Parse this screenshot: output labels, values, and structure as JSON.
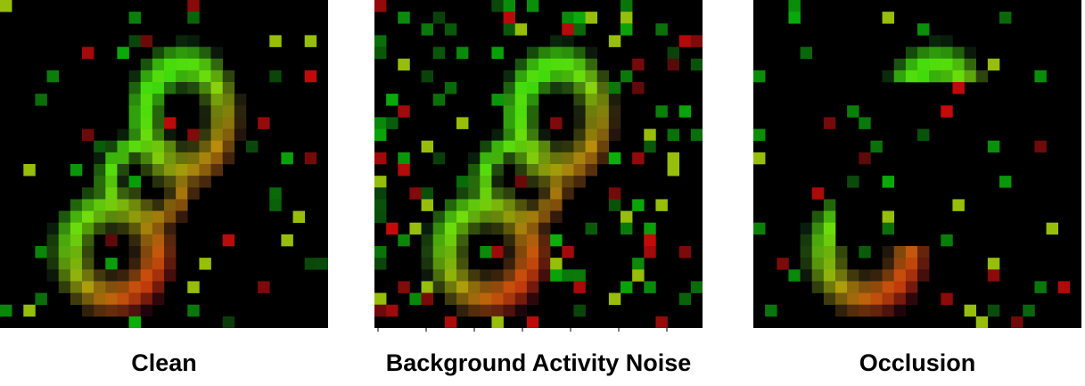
{
  "panels": [
    {
      "id": "clean",
      "caption": "Clean"
    },
    {
      "id": "noise",
      "caption": "Background Activity Noise"
    },
    {
      "id": "occlusion",
      "caption": "Occlusion"
    }
  ],
  "colors": {
    "background": "#000000",
    "green_event": "#22dd11",
    "red_event": "#ee3311",
    "yellow_overlap": "#ccdd11",
    "page": "#ffffff"
  },
  "grid_resolution": 28
}
